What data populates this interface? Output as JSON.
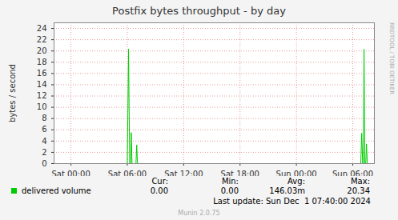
{
  "chart_data": {
    "type": "line",
    "title": "Postfix bytes throughput - by day",
    "y_label": "bytes / second",
    "x": [
      -1.8,
      6.0,
      6.13,
      6.25,
      6.35,
      6.42,
      6.5,
      6.92,
      7.0,
      7.08,
      30.85,
      30.95,
      31.05,
      31.12,
      31.2,
      31.28,
      31.38,
      31.46,
      31.55,
      32.3
    ],
    "series": [
      {
        "name": "delivered volume",
        "color": "#00cc00",
        "values": [
          0,
          0,
          20.34,
          0,
          0,
          5.5,
          0,
          0,
          3.3,
          0,
          0,
          5.4,
          0,
          0,
          20.3,
          0,
          0,
          3.5,
          0,
          0
        ]
      }
    ],
    "xlim": [
      -1.8,
      32.3
    ],
    "xticks": [
      {
        "value": 0,
        "label": "Sat 00:00"
      },
      {
        "value": 6,
        "label": "Sat 06:00"
      },
      {
        "value": 12,
        "label": "Sat 12:00"
      },
      {
        "value": 18,
        "label": "Sat 18:00"
      },
      {
        "value": 24,
        "label": "Sun 00:00"
      },
      {
        "value": 30,
        "label": "Sun 06:00"
      }
    ],
    "ylim": [
      0,
      25
    ],
    "yticks": [
      0,
      2,
      4,
      6,
      8,
      10,
      12,
      14,
      16,
      18,
      20,
      22,
      24
    ],
    "grid": true,
    "stats": [
      {
        "name": "Cur:",
        "value": 0,
        "label": "0.00"
      },
      {
        "name": "Min:",
        "value": 0,
        "label": "0.00"
      },
      {
        "name": "Avg:",
        "value": 0.14603,
        "label": "146.03m"
      },
      {
        "name": "Max:",
        "value": 20.34,
        "label": "20.34"
      }
    ],
    "annotations": [
      "Last update: Sun Dec  1 07:40:00 2024",
      "Munin 2.0.75",
      "RRDTOOL / TOBI OETIKER"
    ]
  }
}
